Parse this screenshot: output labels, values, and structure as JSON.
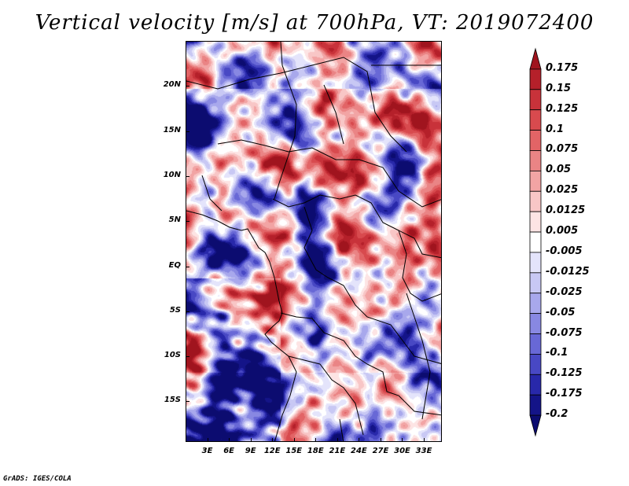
{
  "title": "Vertical velocity [m/s] at 700hPa, VT: 2019072400",
  "credit": "GrADS: IGES/COLA",
  "map": {
    "variable": "Vertical velocity",
    "units": "m/s",
    "level": "700hPa",
    "valid_time": "2019072400",
    "lon_range": [
      0,
      35.5
    ],
    "lat_range": [
      -19.5,
      25
    ],
    "lat_ticks": [
      "20N",
      "15N",
      "10N",
      "5N",
      "EQ",
      "5S",
      "10S",
      "15S"
    ],
    "lat_values": [
      20,
      15,
      10,
      5,
      0,
      -5,
      -10,
      -15
    ],
    "lon_ticks": [
      "3E",
      "6E",
      "9E",
      "12E",
      "15E",
      "18E",
      "21E",
      "24E",
      "27E",
      "30E",
      "33E"
    ],
    "lon_values": [
      3,
      6,
      9,
      12,
      15,
      18,
      21,
      24,
      27,
      30,
      33
    ]
  },
  "colorbar": {
    "labels": [
      "0.175",
      "0.15",
      "0.125",
      "0.1",
      "0.075",
      "0.05",
      "0.025",
      "0.0125",
      "0.005",
      "-0.005",
      "-0.0125",
      "-0.025",
      "-0.05",
      "-0.075",
      "-0.1",
      "-0.125",
      "-0.175",
      "-0.2"
    ],
    "colors": [
      "#a0141e",
      "#b5202a",
      "#c8323a",
      "#d84a4e",
      "#e26466",
      "#ea8485",
      "#f2a4a4",
      "#f8c6c6",
      "#fde4e4",
      "#ffffff",
      "#e4e4fb",
      "#c8c8f4",
      "#a8a8ec",
      "#8888e2",
      "#6868d6",
      "#4848c4",
      "#2828aa",
      "#141488",
      "#0c0c70"
    ]
  }
}
